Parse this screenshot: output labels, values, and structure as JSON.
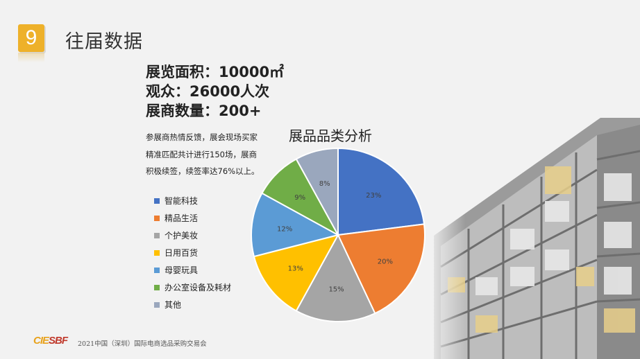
{
  "header": {
    "number": "9",
    "title": "往届数据"
  },
  "stats": {
    "area": "展览面积：10000㎡",
    "audience": "观众：26000人次",
    "exhibitors": "展商数量：200+"
  },
  "description": {
    "line1": "参展商热情反馈，展会现场买家",
    "line2": "精准匹配共计进行150场，展商",
    "line3": "积极续签，续签率达76%以上。"
  },
  "chart_data": {
    "type": "pie",
    "title": "展品品类分析",
    "categories": [
      "智能科技",
      "精品生活",
      "个护美妆",
      "日用百货",
      "母婴玩具",
      "办公室设备及耗材",
      "其他"
    ],
    "values": [
      23,
      20,
      15,
      13,
      12,
      9,
      8
    ],
    "labels": [
      "23%",
      "20%",
      "15%",
      "13%",
      "12%",
      "9%",
      "8%"
    ],
    "colors": [
      "#4472c4",
      "#ed7d31",
      "#a5a5a5",
      "#ffc000",
      "#5b9bd5",
      "#70ad47",
      "#9aa7bd"
    ],
    "legend_position": "left"
  },
  "footer": {
    "logo_a": "CIE",
    "logo_b": "SBF",
    "text": "2021中国（深圳）国际电商选品采购交易会"
  }
}
